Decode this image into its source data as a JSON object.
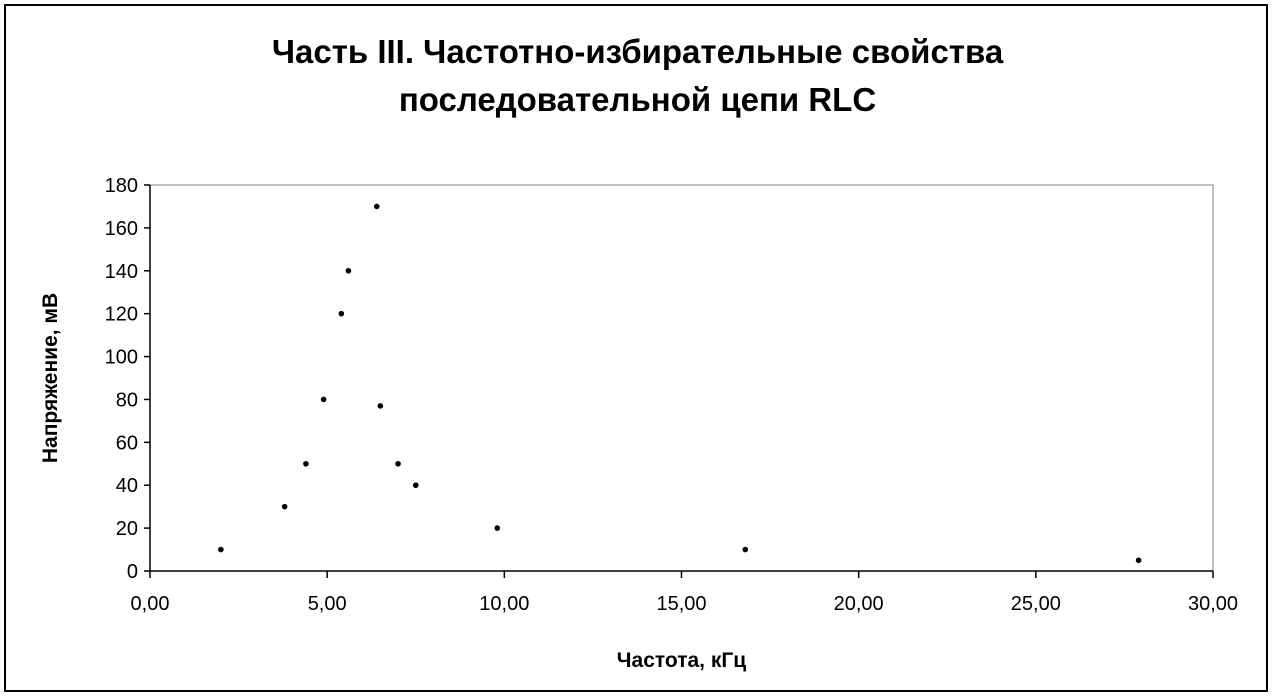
{
  "chart_data": {
    "type": "scatter",
    "title_lines": [
      "Часть III. Частотно-избирательные свойства",
      "последовательной цепи RLC"
    ],
    "xlabel": "Частота, кГц",
    "ylabel": "Напряжение, мВ",
    "xlim": [
      0,
      30
    ],
    "ylim": [
      0,
      180
    ],
    "x_ticks": [
      0,
      5,
      10,
      15,
      20,
      25,
      30
    ],
    "x_tick_labels": [
      "0,00",
      "5,00",
      "10,00",
      "15,00",
      "20,00",
      "25,00",
      "30,00"
    ],
    "y_ticks": [
      0,
      20,
      40,
      60,
      80,
      100,
      120,
      140,
      160,
      180
    ],
    "y_tick_labels": [
      "0",
      "20",
      "40",
      "60",
      "80",
      "100",
      "120",
      "140",
      "160",
      "180"
    ],
    "grid": false,
    "legend": "none",
    "marker_color": "#000000",
    "points": [
      {
        "x": 2.0,
        "y": 10
      },
      {
        "x": 3.8,
        "y": 30
      },
      {
        "x": 4.4,
        "y": 50
      },
      {
        "x": 4.9,
        "y": 80
      },
      {
        "x": 5.4,
        "y": 120
      },
      {
        "x": 5.6,
        "y": 140
      },
      {
        "x": 6.4,
        "y": 170
      },
      {
        "x": 6.5,
        "y": 77
      },
      {
        "x": 7.0,
        "y": 50
      },
      {
        "x": 7.5,
        "y": 40
      },
      {
        "x": 9.8,
        "y": 20
      },
      {
        "x": 16.8,
        "y": 10
      },
      {
        "x": 27.9,
        "y": 5
      }
    ]
  }
}
